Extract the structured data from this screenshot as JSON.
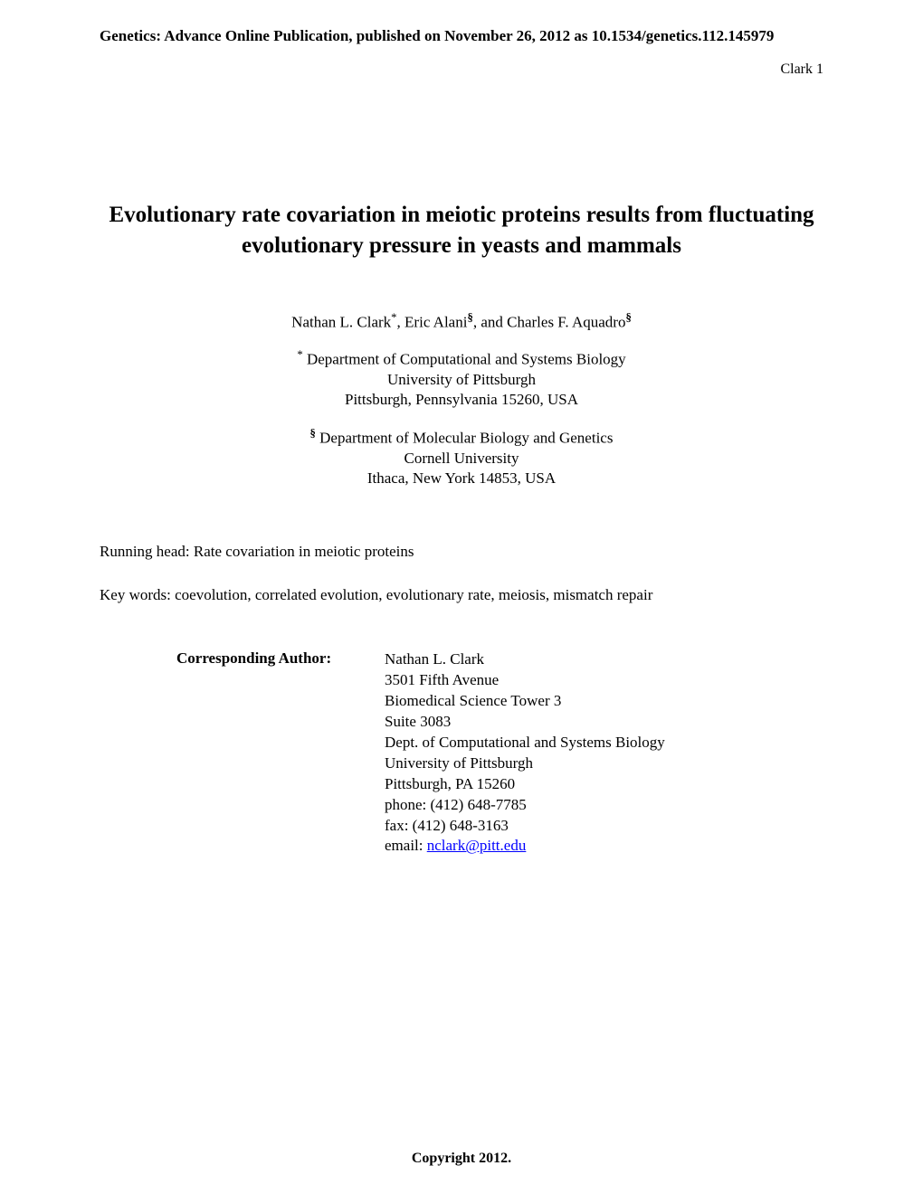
{
  "publication_header": "Genetics: Advance Online Publication, published on November 26, 2012 as 10.1534/genetics.112.145979",
  "page_header": "Clark 1",
  "title": "Evolutionary rate covariation in meiotic proteins results from fluctuating evolutionary pressure in yeasts and mammals",
  "authors": {
    "author1_name": "Nathan L. Clark",
    "author1_sup": "*",
    "author2_name": ", Eric Alani",
    "author2_sup": "§",
    "author3_name": ", and Charles F. Aquadro",
    "author3_sup": "§"
  },
  "affiliation1": {
    "sup": "*",
    "line1": " Department of Computational and Systems Biology",
    "line2": "University of Pittsburgh",
    "line3": "Pittsburgh, Pennsylvania 15260, USA"
  },
  "affiliation2": {
    "sup": "§",
    "line1": " Department of Molecular Biology and Genetics",
    "line2": "Cornell University",
    "line3": "Ithaca, New York 14853, USA"
  },
  "running_head": "Running head: Rate covariation in meiotic proteins",
  "keywords": "Key words: coevolution, correlated evolution, evolutionary rate, meiosis, mismatch repair",
  "corresponding": {
    "label": "Corresponding Author:",
    "name": "Nathan L. Clark",
    "address1": "3501 Fifth Avenue",
    "address2": "Biomedical Science Tower 3",
    "address3": "Suite 3083",
    "dept": "Dept. of Computational and Systems Biology",
    "university": "University of Pittsburgh",
    "city": "Pittsburgh, PA 15260",
    "phone": "phone: (412) 648-7785",
    "fax": "fax: (412) 648-3163",
    "email_label": "email: ",
    "email": "nclark@pitt.edu"
  },
  "copyright": "Copyright 2012.",
  "colors": {
    "background": "#ffffff",
    "text": "#000000",
    "link": "#0000ff"
  },
  "typography": {
    "body_font": "Times New Roman",
    "title_fontsize": 25,
    "body_fontsize": 17,
    "header_fontsize": 17
  }
}
